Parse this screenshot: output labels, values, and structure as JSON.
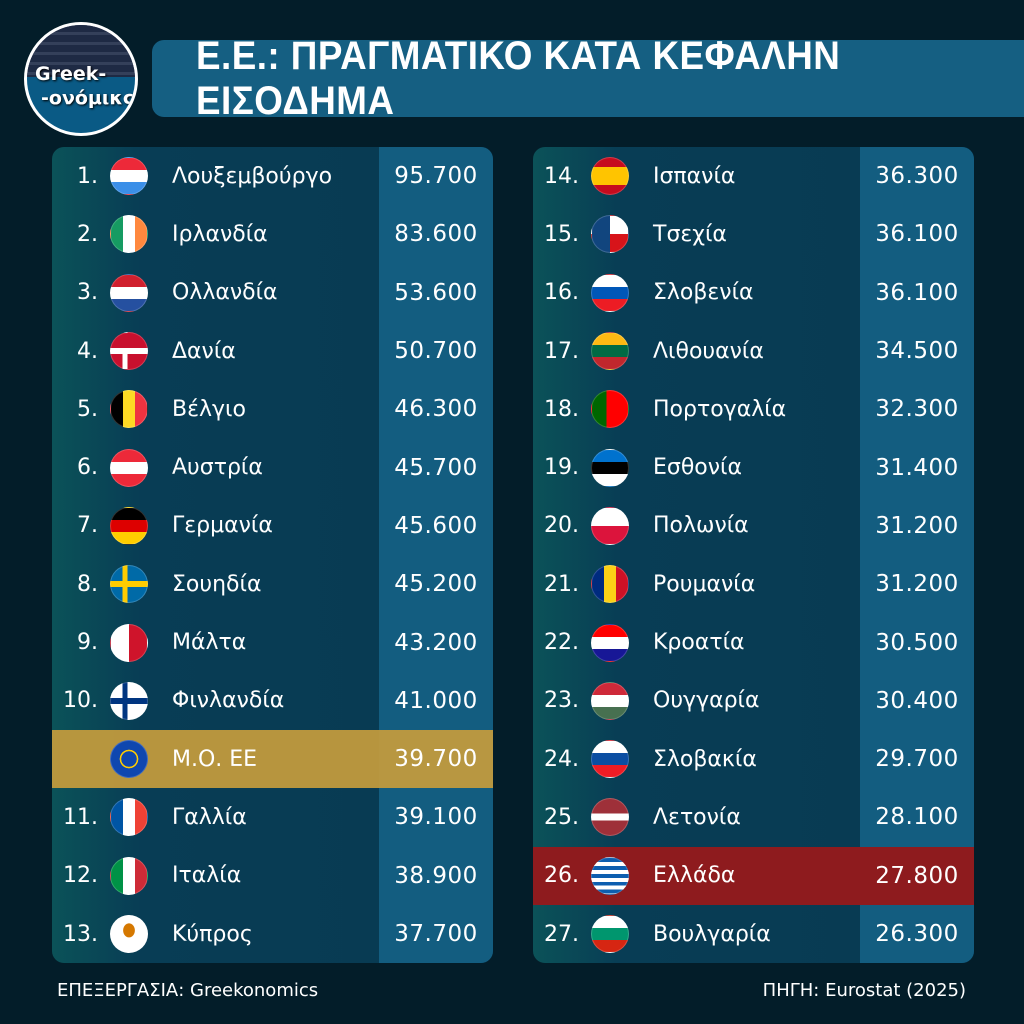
{
  "logo": {
    "line1": "Greek-",
    "line2": "-ονόμικς"
  },
  "title": "Ε.Ε.: ΠΡΑΓΜΑΤΙΚΟ ΚΑΤΑ ΚΕΦΑΛΗΝ ΕΙΣΟΔΗΜΑ",
  "footer": {
    "left": "ΕΠΕΞΕΡΓΑΣΙΑ: Greekonomics",
    "right": "ΠΗΓΗ: Eurostat (2025)"
  },
  "colors": {
    "background": "#031d29",
    "value_column": "#135d80",
    "eu_average_highlight": "#c59c3c",
    "greece_highlight": "#8e1b1e"
  },
  "chart_data": {
    "type": "table",
    "title": "Ε.Ε.: ΠΡΑΓΜΑΤΙΚΟ ΚΑΤΑ ΚΕΦΑΛΗΝ ΕΙΣΟΔΗΜΑ",
    "columns": [
      [
        {
          "rank": "1.",
          "country": "Λουξεμβούργο",
          "value": "95.700",
          "flag": "lu"
        },
        {
          "rank": "2.",
          "country": "Ιρλανδία",
          "value": "83.600",
          "flag": "ie"
        },
        {
          "rank": "3.",
          "country": "Ολλανδία",
          "value": "53.600",
          "flag": "nl"
        },
        {
          "rank": "4.",
          "country": "Δανία",
          "value": "50.700",
          "flag": "dk"
        },
        {
          "rank": "5.",
          "country": "Βέλγιο",
          "value": "46.300",
          "flag": "be"
        },
        {
          "rank": "6.",
          "country": "Αυστρία",
          "value": "45.700",
          "flag": "at"
        },
        {
          "rank": "7.",
          "country": "Γερμανία",
          "value": "45.600",
          "flag": "de"
        },
        {
          "rank": "8.",
          "country": "Σουηδία",
          "value": "45.200",
          "flag": "se"
        },
        {
          "rank": "9.",
          "country": "Μάλτα",
          "value": "43.200",
          "flag": "mt"
        },
        {
          "rank": "10.",
          "country": "Φινλανδία",
          "value": "41.000",
          "flag": "fi"
        },
        {
          "rank": "",
          "country": "Μ.Ο. ΕΕ",
          "value": "39.700",
          "flag": "eu",
          "highlight": "avg"
        },
        {
          "rank": "11.",
          "country": "Γαλλία",
          "value": "39.100",
          "flag": "fr"
        },
        {
          "rank": "12.",
          "country": "Ιταλία",
          "value": "38.900",
          "flag": "it"
        },
        {
          "rank": "13.",
          "country": "Κύπρος",
          "value": "37.700",
          "flag": "cy"
        }
      ],
      [
        {
          "rank": "14.",
          "country": "Ισπανία",
          "value": "36.300",
          "flag": "es"
        },
        {
          "rank": "15.",
          "country": "Τσεχία",
          "value": "36.100",
          "flag": "cz"
        },
        {
          "rank": "16.",
          "country": "Σλοβενία",
          "value": "36.100",
          "flag": "si"
        },
        {
          "rank": "17.",
          "country": "Λιθουανία",
          "value": "34.500",
          "flag": "lt"
        },
        {
          "rank": "18.",
          "country": "Πορτογαλία",
          "value": "32.300",
          "flag": "pt"
        },
        {
          "rank": "19.",
          "country": "Εσθονία",
          "value": "31.400",
          "flag": "ee"
        },
        {
          "rank": "20.",
          "country": "Πολωνία",
          "value": "31.200",
          "flag": "pl"
        },
        {
          "rank": "21.",
          "country": "Ρουμανία",
          "value": "31.200",
          "flag": "ro"
        },
        {
          "rank": "22.",
          "country": "Κροατία",
          "value": "30.500",
          "flag": "hr"
        },
        {
          "rank": "23.",
          "country": "Ουγγαρία",
          "value": "30.400",
          "flag": "hu"
        },
        {
          "rank": "24.",
          "country": "Σλοβακία",
          "value": "29.700",
          "flag": "sk"
        },
        {
          "rank": "25.",
          "country": "Λετονία",
          "value": "28.100",
          "flag": "lv"
        },
        {
          "rank": "26.",
          "country": "Ελλάδα",
          "value": "27.800",
          "flag": "gr",
          "highlight": "gr"
        },
        {
          "rank": "27.",
          "country": "Βουλγαρία",
          "value": "26.300",
          "flag": "bg"
        }
      ]
    ]
  }
}
